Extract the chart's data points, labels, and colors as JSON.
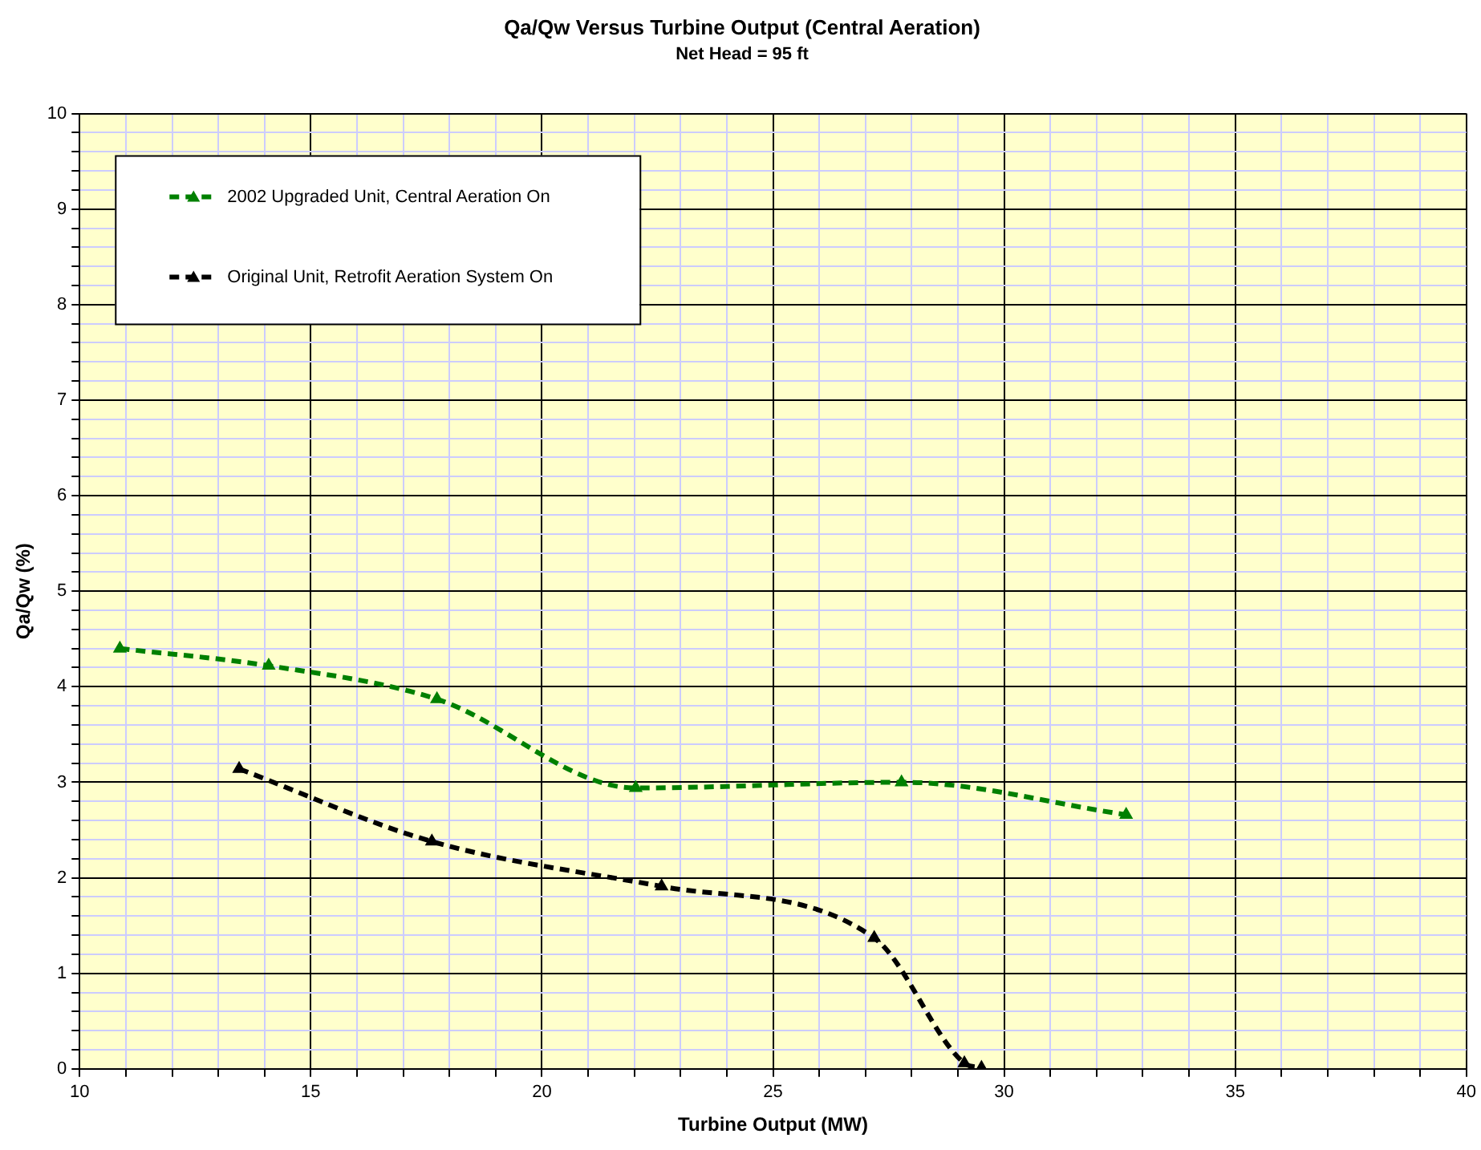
{
  "chart_data": {
    "type": "line",
    "title": "Qa/Qw Versus Turbine Output (Central Aeration)",
    "subtitle": "Net Head = 95 ft",
    "xlabel": "Turbine Output (MW)",
    "ylabel": "Qa/Qw (%)",
    "series": [
      {
        "name": "2002 Upgraded Unit, Central Aeration On",
        "color": "#008000",
        "x": [
          10.87,
          14.09,
          17.73,
          22.03,
          27.78,
          32.64
        ],
        "values": [
          4.4,
          4.22,
          3.87,
          2.94,
          3.0,
          2.66
        ]
      },
      {
        "name": "Original Unit, Retrofit Aeration System On",
        "color": "#000000",
        "x": [
          13.45,
          17.62,
          22.59,
          27.19,
          29.14,
          29.51
        ],
        "values": [
          3.14,
          2.38,
          1.91,
          1.37,
          0.06,
          0.01
        ]
      }
    ],
    "xlim": [
      10,
      40
    ],
    "xticks": [
      10,
      {
        "value": 11,
        "label": null
      },
      {
        "value": 12,
        "label": null
      },
      {
        "value": 13,
        "label": null
      },
      {
        "value": 14,
        "label": null
      },
      15,
      {
        "value": 16,
        "label": null
      },
      {
        "value": 17,
        "label": null
      },
      {
        "value": 18,
        "label": null
      },
      {
        "value": 19,
        "label": null
      },
      20,
      {
        "value": 21,
        "label": null
      },
      {
        "value": 22,
        "label": null
      },
      {
        "value": 23,
        "label": null
      },
      {
        "value": 24,
        "label": null
      },
      25,
      {
        "value": 26,
        "label": null
      },
      {
        "value": 27,
        "label": null
      },
      {
        "value": 28,
        "label": null
      },
      {
        "value": 29,
        "label": null
      },
      30,
      {
        "value": 31,
        "label": null
      },
      {
        "value": 32,
        "label": null
      },
      {
        "value": 33,
        "label": null
      },
      {
        "value": 34,
        "label": null
      },
      35,
      {
        "value": 36,
        "label": null
      },
      {
        "value": 37,
        "label": null
      },
      {
        "value": 38,
        "label": null
      },
      {
        "value": 39,
        "label": null
      },
      40
    ],
    "ylim": [
      0,
      10
    ],
    "yticks": [
      0,
      {
        "value": 0.2,
        "label": null
      },
      {
        "value": 0.4,
        "label": null
      },
      {
        "value": 0.6,
        "label": null
      },
      {
        "value": 0.8,
        "label": null
      },
      1,
      {
        "value": 1.2,
        "label": null
      },
      {
        "value": 1.4,
        "label": null
      },
      {
        "value": 1.6,
        "label": null
      },
      {
        "value": 1.8,
        "label": null
      },
      2,
      {
        "value": 2.2,
        "label": null
      },
      {
        "value": 2.4,
        "label": null
      },
      {
        "value": 2.6,
        "label": null
      },
      {
        "value": 2.8,
        "label": null
      },
      3,
      {
        "value": 3.2,
        "label": null
      },
      {
        "value": 3.4,
        "label": null
      },
      {
        "value": 3.6,
        "label": null
      },
      {
        "value": 3.8,
        "label": null
      },
      4,
      {
        "value": 4.2,
        "label": null
      },
      {
        "value": 4.4,
        "label": null
      },
      {
        "value": 4.6,
        "label": null
      },
      {
        "value": 4.8,
        "label": null
      },
      5,
      {
        "value": 5.2,
        "label": null
      },
      {
        "value": 5.4,
        "label": null
      },
      {
        "value": 5.6,
        "label": null
      },
      {
        "value": 5.8,
        "label": null
      },
      6,
      {
        "value": 6.2,
        "label": null
      },
      {
        "value": 6.4,
        "label": null
      },
      {
        "value": 6.6,
        "label": null
      },
      {
        "value": 6.8,
        "label": null
      },
      7,
      {
        "value": 7.2,
        "label": null
      },
      {
        "value": 7.4,
        "label": null
      },
      {
        "value": 7.6,
        "label": null
      },
      {
        "value": 7.8,
        "label": null
      },
      8,
      {
        "value": 8.2,
        "label": null
      },
      {
        "value": 8.4,
        "label": null
      },
      {
        "value": 8.6,
        "label": null
      },
      {
        "value": 8.8,
        "label": null
      },
      9,
      {
        "value": 9.2,
        "label": null
      },
      {
        "value": 9.4,
        "label": null
      },
      {
        "value": 9.6,
        "label": null
      },
      {
        "value": 9.8,
        "label": null
      },
      10
    ],
    "grid": true,
    "legend": "top left",
    "marker": "triangle",
    "line_style": "dashed"
  }
}
